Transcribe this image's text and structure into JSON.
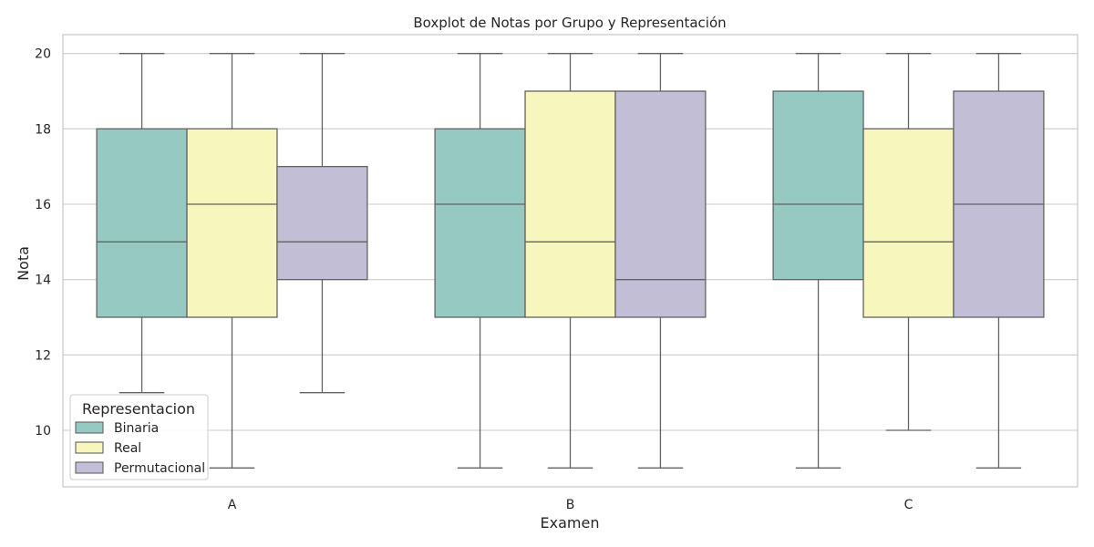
{
  "chart_data": {
    "type": "boxplot",
    "title": "Boxplot de Notas por Grupo y Representación",
    "xlabel": "Examen",
    "ylabel": "Nota",
    "categories": [
      "A",
      "B",
      "C"
    ],
    "ylim": [
      8.5,
      20.5
    ],
    "yticks": [
      10,
      12,
      14,
      16,
      18,
      20
    ],
    "grid": true,
    "legend": {
      "title": "Representacion",
      "placement": "lower-left"
    },
    "series": [
      {
        "name": "Binaria",
        "color": "#95c9c2",
        "boxes": [
          {
            "whisker_low": 11,
            "q1": 13,
            "median": 15,
            "q3": 18,
            "whisker_high": 20
          },
          {
            "whisker_low": 9,
            "q1": 13,
            "median": 16,
            "q3": 18,
            "whisker_high": 20
          },
          {
            "whisker_low": 9,
            "q1": 14,
            "median": 16,
            "q3": 19,
            "whisker_high": 20
          }
        ]
      },
      {
        "name": "Real",
        "color": "#f6f6bd",
        "boxes": [
          {
            "whisker_low": 9,
            "q1": 13,
            "median": 16,
            "q3": 18,
            "whisker_high": 20
          },
          {
            "whisker_low": 9,
            "q1": 13,
            "median": 15,
            "q3": 19,
            "whisker_high": 20
          },
          {
            "whisker_low": 10,
            "q1": 13,
            "median": 15,
            "q3": 18,
            "whisker_high": 20
          }
        ]
      },
      {
        "name": "Permutacional",
        "color": "#c1bed6",
        "boxes": [
          {
            "whisker_low": 11,
            "q1": 14,
            "median": 15,
            "q3": 17,
            "whisker_high": 20
          },
          {
            "whisker_low": 9,
            "q1": 13,
            "median": 14,
            "q3": 19,
            "whisker_high": 20
          },
          {
            "whisker_low": 9,
            "q1": 13,
            "median": 16,
            "q3": 19,
            "whisker_high": 20
          }
        ]
      }
    ]
  }
}
